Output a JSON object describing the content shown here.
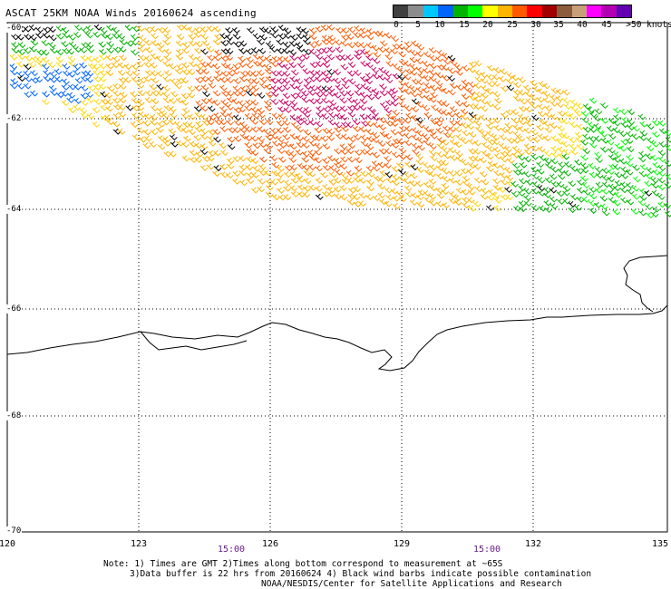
{
  "title": "ASCAT 25KM NOAA Winds 20160624 ascending",
  "legend": {
    "colors": [
      "#404040",
      "#8c8c8c",
      "#00c8ff",
      "#0064ff",
      "#00b400",
      "#00ff00",
      "#ffff00",
      "#ffb400",
      "#ff5a00",
      "#ff0000",
      "#a00000",
      "#8c5a3c",
      "#c8a078",
      "#ff00ff",
      "#b400b4",
      "#6400b4"
    ],
    "labels": [
      "0",
      "5",
      "10",
      "15",
      "20",
      "25",
      "30",
      "35",
      "40",
      "45",
      ">50 knots"
    ]
  },
  "map": {
    "lat_labels": [
      "-60",
      "-62",
      "-64",
      "-66",
      "-68",
      "-70"
    ],
    "lon_labels": [
      "120",
      "123",
      "126",
      "129",
      "132",
      "135"
    ],
    "time_labels": [
      "15:00",
      "15:00"
    ]
  },
  "notes": [
    "Note: 1) Times are GMT 2)Times along bottom correspond to measurement at ~65S",
    "3)Data buffer is 22 hrs from 20160624 4) Black wind barbs indicate possible contamination",
    "NOAA/NESDIS/Center for Satellite Applications and Research"
  ]
}
